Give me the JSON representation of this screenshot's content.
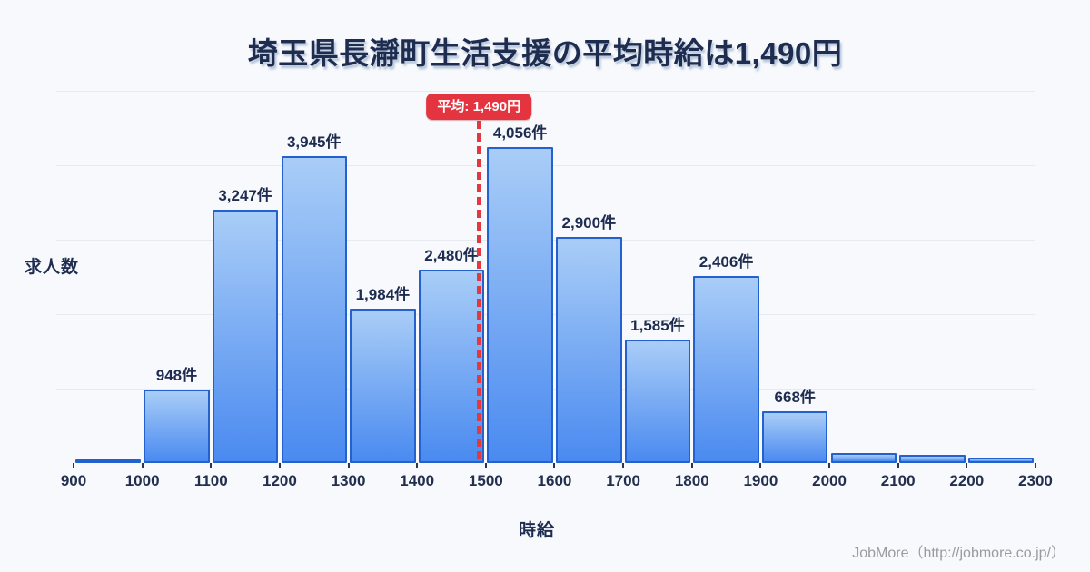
{
  "title": "埼玉県長瀞町生活支援の平均時給は1,490円",
  "footer": "JobMore（http://jobmore.co.jp/）",
  "chart_data": {
    "type": "bar",
    "title": "埼玉県長瀞町生活支援の平均時給は1,490円",
    "xlabel": "時給",
    "ylabel": "求人数",
    "legend": "none",
    "grid": true,
    "bin_width": 100,
    "categories": [
      "900-1000",
      "1000-1100",
      "1100-1200",
      "1200-1300",
      "1300-1400",
      "1400-1500",
      "1500-1600",
      "1600-1700",
      "1700-1800",
      "1800-1900",
      "1900-2000",
      "2000-2100",
      "2100-2200",
      "2200-2300"
    ],
    "values": [
      45,
      948,
      3247,
      3945,
      1984,
      2480,
      4056,
      2900,
      1585,
      2406,
      668,
      128,
      105,
      70
    ],
    "bar_labels": [
      "",
      "948件",
      "3,247件",
      "3,945件",
      "1,984件",
      "2,480件",
      "4,056件",
      "2,900件",
      "1,585件",
      "2,406件",
      "668件",
      "",
      "",
      ""
    ],
    "x_ticks": [
      "900",
      "1000",
      "1100",
      "1200",
      "1300",
      "1400",
      "1500",
      "1600",
      "1700",
      "1800",
      "1900",
      "2000",
      "2100",
      "2200",
      "2300"
    ],
    "xlim": [
      900,
      2300
    ],
    "ylim": [
      0,
      4780
    ],
    "average_line": {
      "value": 1490,
      "label": "平均: 1,490円"
    },
    "colors": {
      "background": "#f7f9fc",
      "bar_fill_top": "#a9cdf7",
      "bar_fill_bottom": "#4a8af0",
      "bar_border": "#2361cf",
      "gridline": "#e7eaf1",
      "text": "#1e2c50",
      "average_red": "#e4343f",
      "footer_text": "#9a9aa2"
    }
  }
}
